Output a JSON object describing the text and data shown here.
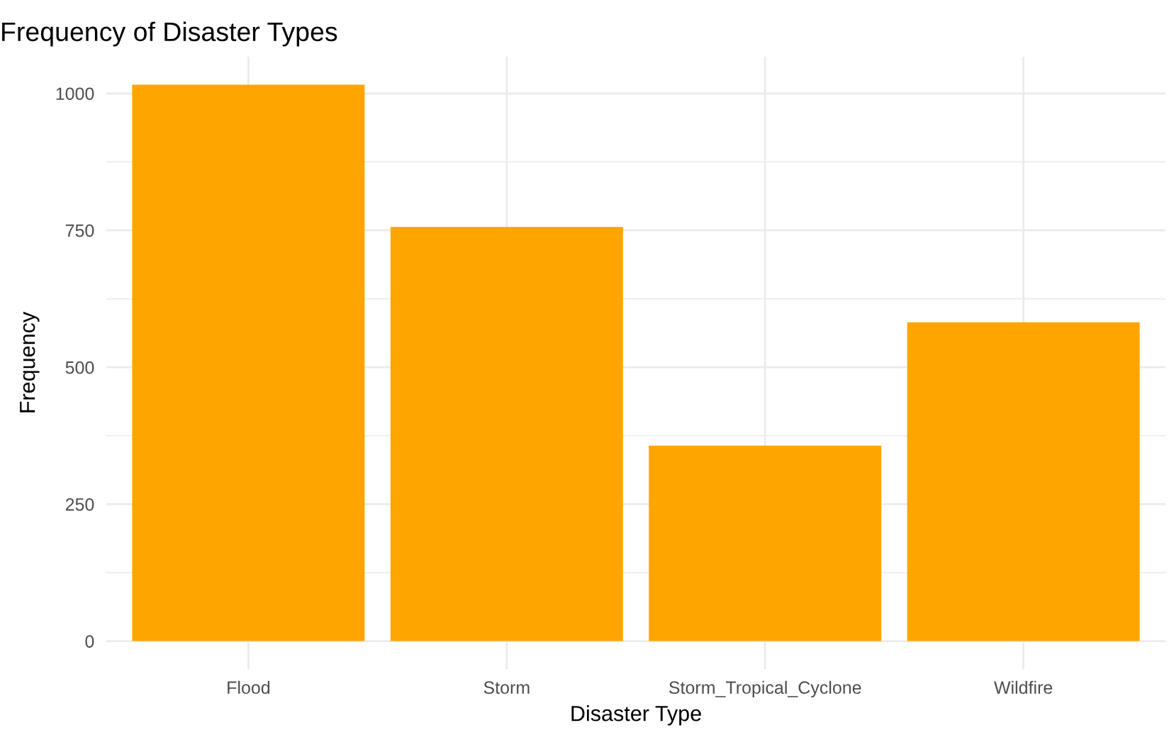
{
  "chart_data": {
    "type": "bar",
    "title": "Frequency of Disaster Types",
    "xlabel": "Disaster Type",
    "ylabel": "Frequency",
    "categories": [
      "Flood",
      "Storm",
      "Storm_Tropical_Cyclone",
      "Wildfire"
    ],
    "values": [
      1016,
      756,
      357,
      582
    ],
    "color": "#ffa500",
    "ylim": [
      -51,
      1067
    ],
    "yticks": [
      0,
      250,
      500,
      750,
      1000
    ],
    "grid": true,
    "legend": false
  }
}
